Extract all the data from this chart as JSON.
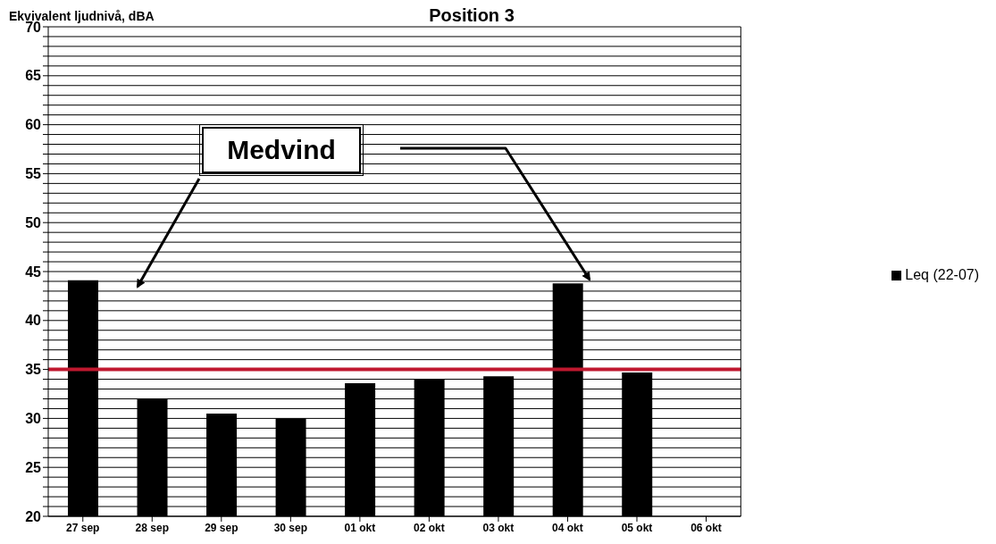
{
  "chart_data": {
    "type": "bar",
    "title": "Position 3",
    "ylabel": "Ekvivalent ljudnivå, dBA",
    "categories": [
      "27 sep",
      "28 sep",
      "29 sep",
      "30 sep",
      "01 okt",
      "02 okt",
      "03 okt",
      "04 okt",
      "05 okt",
      "06 okt"
    ],
    "series": [
      {
        "name": "Leq (22-07)",
        "color": "#000000",
        "values": [
          44.1,
          32.0,
          30.5,
          30.0,
          33.6,
          34.0,
          34.3,
          43.8,
          34.7,
          null
        ]
      }
    ],
    "ylim": [
      20,
      70
    ],
    "yticks": [
      20,
      {
        "value": 21,
        "label": null
      },
      {
        "value": 22,
        "label": null
      },
      {
        "value": 23,
        "label": null
      },
      {
        "value": 24,
        "label": null
      },
      25,
      {
        "value": 26,
        "label": null
      },
      {
        "value": 27,
        "label": null
      },
      {
        "value": 28,
        "label": null
      },
      {
        "value": 29,
        "label": null
      },
      30,
      {
        "value": 31,
        "label": null
      },
      {
        "value": 32,
        "label": null
      },
      {
        "value": 33,
        "label": null
      },
      {
        "value": 34,
        "label": null
      },
      35,
      {
        "value": 36,
        "label": null
      },
      {
        "value": 37,
        "label": null
      },
      {
        "value": 38,
        "label": null
      },
      {
        "value": 39,
        "label": null
      },
      40,
      {
        "value": 41,
        "label": null
      },
      {
        "value": 42,
        "label": null
      },
      {
        "value": 43,
        "label": null
      },
      {
        "value": 44,
        "label": null
      },
      45,
      {
        "value": 46,
        "label": null
      },
      {
        "value": 47,
        "label": null
      },
      {
        "value": 48,
        "label": null
      },
      {
        "value": 49,
        "label": null
      },
      50,
      {
        "value": 51,
        "label": null
      },
      {
        "value": 52,
        "label": null
      },
      {
        "value": 53,
        "label": null
      },
      {
        "value": 54,
        "label": null
      },
      55,
      {
        "value": 56,
        "label": null
      },
      {
        "value": 57,
        "label": null
      },
      {
        "value": 58,
        "label": null
      },
      {
        "value": 59,
        "label": null
      },
      60,
      {
        "value": 61,
        "label": null
      },
      {
        "value": 62,
        "label": null
      },
      {
        "value": 63,
        "label": null
      },
      {
        "value": 64,
        "label": null
      },
      65,
      {
        "value": 66,
        "label": null
      },
      {
        "value": 67,
        "label": null
      },
      {
        "value": 68,
        "label": null
      },
      {
        "value": 69,
        "label": null
      },
      70
    ],
    "grid": "y",
    "legend": "right",
    "ref_lines": [
      {
        "axis": "y",
        "value": 35,
        "color": "#c0182f"
      }
    ],
    "annotations": [
      "Medvind"
    ]
  }
}
